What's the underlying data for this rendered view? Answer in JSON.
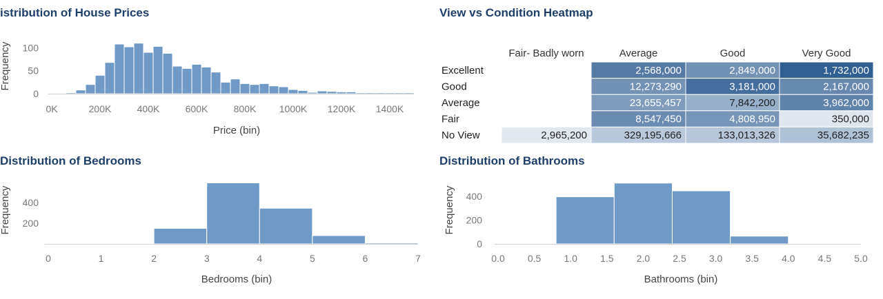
{
  "colors": {
    "bar": "#6f9ac7",
    "bar_stroke": "#ffffff",
    "baseline": "#cfcfcf",
    "title": "#1f3f6b",
    "heat_light": "#e8ecf2",
    "heat_dark": "#2a5b91"
  },
  "chart_data": [
    {
      "id": "prices",
      "type": "bar",
      "title": "istribution of House Prices",
      "xlabel": "Price (bin)",
      "ylabel": "Frequency",
      "xlim": [
        0,
        1500000
      ],
      "ylim": [
        0,
        120
      ],
      "x_ticks": [
        0,
        200000,
        400000,
        600000,
        800000,
        1000000,
        1200000,
        1400000
      ],
      "x_tick_labels": [
        "0K",
        "200K",
        "400K",
        "600K",
        "800K",
        "1000K",
        "1200K",
        "1400K"
      ],
      "y_ticks": [
        0,
        50,
        100
      ],
      "y_tick_labels": [
        "0",
        "50",
        "100"
      ],
      "bin_width": 40000,
      "bin_starts": [
        60000,
        100000,
        140000,
        180000,
        220000,
        260000,
        300000,
        340000,
        380000,
        420000,
        460000,
        500000,
        540000,
        580000,
        620000,
        660000,
        700000,
        740000,
        780000,
        820000,
        860000,
        900000,
        940000,
        980000,
        1020000,
        1060000,
        1100000,
        1140000,
        1180000,
        1220000,
        1260000,
        1300000,
        1340000,
        1380000,
        1420000,
        1460000
      ],
      "values": [
        2,
        8,
        20,
        40,
        68,
        108,
        102,
        110,
        90,
        103,
        88,
        60,
        55,
        64,
        58,
        47,
        25,
        32,
        22,
        20,
        22,
        17,
        15,
        9,
        7,
        3,
        6,
        5,
        4,
        4,
        0,
        2,
        2,
        1,
        2,
        2
      ],
      "grid": false
    },
    {
      "id": "bedrooms",
      "type": "bar",
      "title": "Distribution of Bedrooms",
      "xlabel": "Bedrooms (bin)",
      "ylabel": "Frequency",
      "xlim": [
        0,
        7
      ],
      "ylim": [
        0,
        600
      ],
      "x_ticks": [
        0,
        1,
        2,
        3,
        4,
        5,
        6,
        7
      ],
      "x_tick_labels": [
        "0",
        "1",
        "2",
        "3",
        "4",
        "5",
        "6",
        "7"
      ],
      "y_ticks": [
        200,
        400
      ],
      "y_tick_labels": [
        "200",
        "400"
      ],
      "bin_width": 1,
      "bin_starts": [
        2,
        3,
        4,
        5,
        6
      ],
      "values": [
        150,
        590,
        345,
        80,
        5
      ],
      "grid": false
    },
    {
      "id": "bathrooms",
      "type": "bar",
      "title": "Distribution of Bathrooms",
      "xlabel": "Bathrooms (bin)",
      "ylabel": "Frequency",
      "xlim": [
        0,
        5
      ],
      "ylim": [
        0,
        520
      ],
      "x_ticks": [
        0,
        0.5,
        1,
        1.5,
        2,
        2.5,
        3,
        3.5,
        4,
        4.5,
        5
      ],
      "x_tick_labels": [
        "0.0",
        "0.5",
        "1.0",
        "1.5",
        "2.0",
        "2.5",
        "3.0",
        "3.5",
        "4.0",
        "4.5",
        "5.0"
      ],
      "y_ticks": [
        0,
        200,
        400
      ],
      "y_tick_labels": [
        "0",
        "200",
        "400"
      ],
      "bin_width": 0.8,
      "bin_starts": [
        0.8,
        1.6,
        2.4,
        3.2
      ],
      "values": [
        395,
        510,
        445,
        65
      ],
      "grid": false
    },
    {
      "id": "heatmap",
      "type": "heatmap",
      "title": "View vs Condition Heatmap",
      "columns": [
        "Fair- Badly worn",
        "Average",
        "Good",
        "Very Good"
      ],
      "rows": [
        "Excellent",
        "Good",
        "Average",
        "Fair",
        "No View"
      ],
      "values": [
        [
          null,
          2568000,
          2849000,
          1732000
        ],
        [
          null,
          12273290,
          3181000,
          2167000
        ],
        [
          null,
          23655457,
          7842200,
          3962000
        ],
        [
          null,
          8547450,
          4808950,
          350000
        ],
        [
          2965200,
          329195666,
          133013326,
          35682235
        ]
      ],
      "labels": [
        [
          "",
          "2,568,000",
          "2,849,000",
          "1,732,000"
        ],
        [
          "",
          "12,273,290",
          "3,181,000",
          "2,167,000"
        ],
        [
          "",
          "23,655,457",
          "7,842,200",
          "3,962,000"
        ],
        [
          "",
          "8,547,450",
          "4,808,950",
          "350,000"
        ],
        [
          "2,965,200",
          "329,195,666",
          "133,013,326",
          "35,682,235"
        ]
      ],
      "shades": [
        [
          null,
          0.78,
          0.62,
          0.97
        ],
        [
          null,
          0.62,
          0.87,
          0.68
        ],
        [
          null,
          0.55,
          0.42,
          0.72
        ],
        [
          null,
          0.66,
          0.6,
          0.04
        ],
        [
          0.03,
          0.25,
          0.26,
          0.3
        ]
      ]
    }
  ]
}
